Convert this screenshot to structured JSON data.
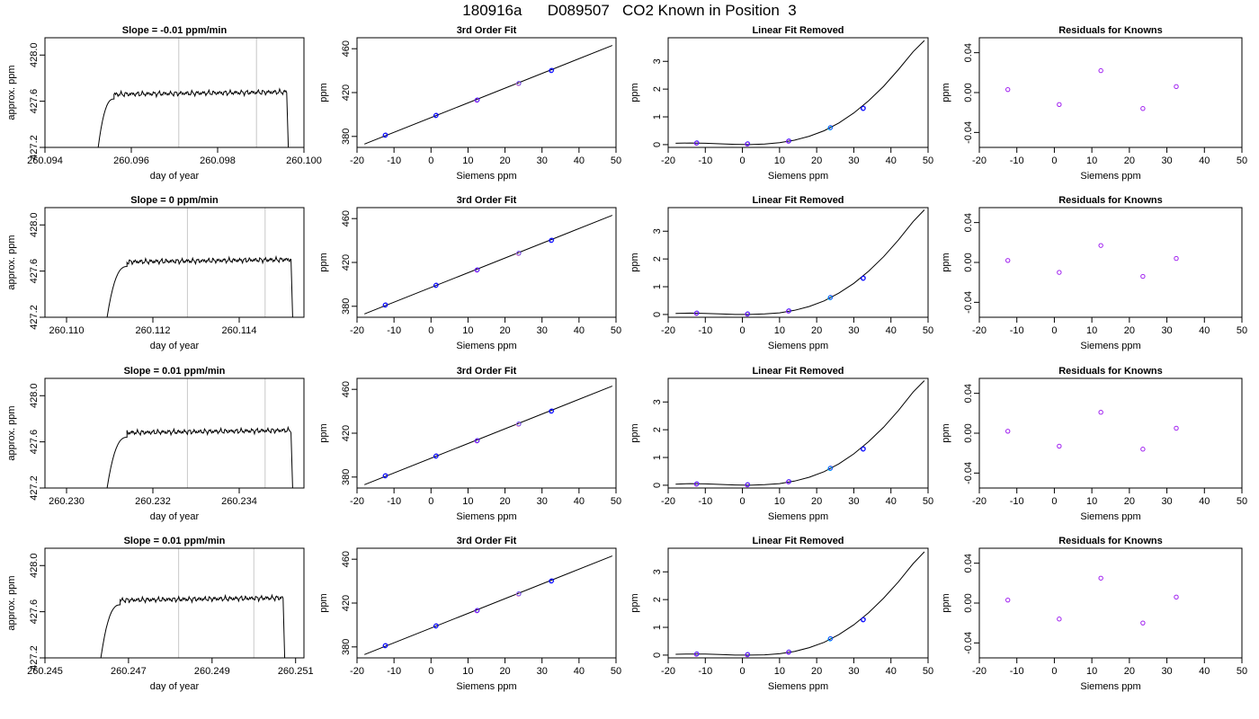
{
  "page_title": "180916a      D089507   CO2 Known in Position  3",
  "colors": {
    "trace": "#000000",
    "window": "#c8c8c8",
    "fit_line": "#000000",
    "point_blue": "#0000ff",
    "point_purple": "#a020f0",
    "point_cyan": "#00bfff",
    "point_pink": "#ff9ec4"
  },
  "chart_data": [
    {
      "type": "line",
      "row": 1,
      "col": 1,
      "title": "Slope =  -0.01  ppm/min",
      "xlabel": "day of year",
      "ylabel": "approx. ppm",
      "xlim": [
        260.094,
        260.1
      ],
      "ylim": [
        427.2,
        428.15
      ],
      "xticks": [
        "260.094",
        "260.096",
        "260.098",
        "260.100"
      ],
      "yticks": [
        "427.2",
        "427.6",
        "428.0"
      ],
      "window": [
        260.0971,
        260.0989
      ],
      "trace": {
        "start": 260.0952,
        "rise_end": 260.0956,
        "plateau": 427.66,
        "fall_start": 260.0996,
        "end": 260.09965
      }
    },
    {
      "type": "scatter",
      "row": 1,
      "col": 2,
      "title": "3rd Order Fit",
      "xlabel": "Siemens ppm",
      "ylabel": "ppm",
      "xlim": [
        -20,
        50
      ],
      "ylim": [
        370,
        470
      ],
      "xticks": [
        "-20",
        "-10",
        "0",
        "10",
        "20",
        "30",
        "40",
        "50"
      ],
      "yticks": [
        "380",
        "420",
        "460"
      ],
      "line": [
        [
          -18,
          373
        ],
        [
          49,
          463
        ]
      ],
      "points": [
        {
          "x": -12.4,
          "y": 381
        },
        {
          "x": 1.3,
          "y": 399
        },
        {
          "x": 12.4,
          "y": 413
        },
        {
          "x": 23.6,
          "y": 428
        },
        {
          "x": 32.5,
          "y": 440
        }
      ]
    },
    {
      "type": "line",
      "row": 1,
      "col": 3,
      "title": "Linear Fit Removed",
      "xlabel": "Siemens ppm",
      "ylabel": "ppm",
      "xlim": [
        -20,
        50
      ],
      "ylim": [
        -0.1,
        3.85
      ],
      "xticks": [
        "-20",
        "-10",
        "0",
        "10",
        "20",
        "30",
        "40",
        "50"
      ],
      "yticks": [
        "0",
        "1",
        "2",
        "3"
      ],
      "curve_x": [
        -18,
        -14,
        -10,
        -6,
        -2,
        2,
        6,
        10,
        14,
        18,
        22,
        26,
        30,
        34,
        38,
        42,
        46,
        49
      ],
      "curve_y": [
        0.05,
        0.06,
        0.05,
        0.03,
        0.01,
        0.0,
        0.02,
        0.07,
        0.16,
        0.3,
        0.5,
        0.78,
        1.14,
        1.58,
        2.1,
        2.7,
        3.35,
        3.75
      ],
      "points": [
        {
          "x": -12.4,
          "y": 0.05
        },
        {
          "x": 1.3,
          "y": 0.02
        },
        {
          "x": 12.4,
          "y": 0.12
        },
        {
          "x": 23.6,
          "y": 0.6
        },
        {
          "x": 32.5,
          "y": 1.3
        }
      ]
    },
    {
      "type": "scatter",
      "row": 1,
      "col": 4,
      "title": "Residuals for Knowns",
      "xlabel": "Siemens ppm",
      "ylabel": "ppm",
      "xlim": [
        -20,
        50
      ],
      "ylim": [
        -0.055,
        0.055
      ],
      "xticks": [
        "-20",
        "-10",
        "0",
        "10",
        "20",
        "30",
        "40",
        "50"
      ],
      "yticks": [
        "-0.04",
        "0.00",
        "0.04"
      ],
      "points": [
        {
          "x": -12.4,
          "y": 0.003
        },
        {
          "x": 1.3,
          "y": -0.012
        },
        {
          "x": 12.4,
          "y": 0.022
        },
        {
          "x": 23.6,
          "y": -0.016
        },
        {
          "x": 32.5,
          "y": 0.006
        }
      ]
    },
    {
      "type": "line",
      "row": 2,
      "col": 1,
      "title": "Slope =  0  ppm/min",
      "xlabel": "day of year",
      "ylabel": "approx. ppm",
      "xlim": [
        260.1095,
        260.1155
      ],
      "ylim": [
        427.2,
        428.15
      ],
      "xticks": [
        "260.110",
        "260.112",
        "260.114"
      ],
      "yticks": [
        "427.2",
        "427.6",
        "428.0"
      ],
      "window": [
        260.1128,
        260.1146
      ],
      "trace": {
        "start": 260.1109,
        "rise_end": 260.1114,
        "plateau": 427.68,
        "fall_start": 260.1152,
        "end": 260.11525
      }
    },
    {
      "type": "scatter",
      "row": 2,
      "col": 2,
      "title": "3rd Order Fit",
      "xlabel": "Siemens ppm",
      "ylabel": "ppm",
      "xlim": [
        -20,
        50
      ],
      "ylim": [
        370,
        470
      ],
      "xticks": [
        "-20",
        "-10",
        "0",
        "10",
        "20",
        "30",
        "40",
        "50"
      ],
      "yticks": [
        "380",
        "420",
        "460"
      ],
      "line": [
        [
          -18,
          373
        ],
        [
          49,
          463
        ]
      ],
      "points": [
        {
          "x": -12.4,
          "y": 381
        },
        {
          "x": 1.3,
          "y": 399
        },
        {
          "x": 12.4,
          "y": 413
        },
        {
          "x": 23.6,
          "y": 428
        },
        {
          "x": 32.5,
          "y": 440
        }
      ]
    },
    {
      "type": "line",
      "row": 2,
      "col": 3,
      "title": "Linear Fit Removed",
      "xlabel": "Siemens ppm",
      "ylabel": "ppm",
      "xlim": [
        -20,
        50
      ],
      "ylim": [
        -0.1,
        3.85
      ],
      "xticks": [
        "-20",
        "-10",
        "0",
        "10",
        "20",
        "30",
        "40",
        "50"
      ],
      "yticks": [
        "0",
        "1",
        "2",
        "3"
      ],
      "curve_x": [
        -18,
        -14,
        -10,
        -6,
        -2,
        2,
        6,
        10,
        14,
        18,
        22,
        26,
        30,
        34,
        38,
        42,
        46,
        49
      ],
      "curve_y": [
        0.04,
        0.05,
        0.04,
        0.02,
        0.0,
        0.0,
        0.02,
        0.06,
        0.15,
        0.29,
        0.49,
        0.77,
        1.12,
        1.56,
        2.08,
        2.68,
        3.35,
        3.77
      ],
      "points": [
        {
          "x": -12.4,
          "y": 0.04
        },
        {
          "x": 1.3,
          "y": 0.01
        },
        {
          "x": 12.4,
          "y": 0.12
        },
        {
          "x": 23.6,
          "y": 0.6
        },
        {
          "x": 32.5,
          "y": 1.3
        }
      ]
    },
    {
      "type": "scatter",
      "row": 2,
      "col": 4,
      "title": "Residuals for Knowns",
      "xlabel": "Siemens ppm",
      "ylabel": "ppm",
      "xlim": [
        -20,
        50
      ],
      "ylim": [
        -0.055,
        0.055
      ],
      "xticks": [
        "-20",
        "-10",
        "0",
        "10",
        "20",
        "30",
        "40",
        "50"
      ],
      "yticks": [
        "-0.04",
        "0.00",
        "0.04"
      ],
      "points": [
        {
          "x": -12.4,
          "y": 0.002
        },
        {
          "x": 1.3,
          "y": -0.01
        },
        {
          "x": 12.4,
          "y": 0.017
        },
        {
          "x": 23.6,
          "y": -0.014
        },
        {
          "x": 32.5,
          "y": 0.004
        }
      ]
    },
    {
      "type": "line",
      "row": 3,
      "col": 1,
      "title": "Slope =  0.01  ppm/min",
      "xlabel": "day of year",
      "ylabel": "approx. ppm",
      "xlim": [
        260.2295,
        260.2355
      ],
      "ylim": [
        427.2,
        428.15
      ],
      "xticks": [
        "260.230",
        "260.232",
        "260.234"
      ],
      "yticks": [
        "427.2",
        "427.6",
        "428.0"
      ],
      "window": [
        260.2328,
        260.2346
      ],
      "trace": {
        "start": 260.2309,
        "rise_end": 260.2314,
        "plateau": 427.68,
        "fall_start": 260.2352,
        "end": 260.23525
      }
    },
    {
      "type": "scatter",
      "row": 3,
      "col": 2,
      "title": "3rd Order Fit",
      "xlabel": "Siemens ppm",
      "ylabel": "ppm",
      "xlim": [
        -20,
        50
      ],
      "ylim": [
        370,
        470
      ],
      "xticks": [
        "-20",
        "-10",
        "0",
        "10",
        "20",
        "30",
        "40",
        "50"
      ],
      "yticks": [
        "380",
        "420",
        "460"
      ],
      "line": [
        [
          -18,
          373
        ],
        [
          49,
          463
        ]
      ],
      "points": [
        {
          "x": -12.4,
          "y": 381
        },
        {
          "x": 1.3,
          "y": 399
        },
        {
          "x": 12.4,
          "y": 413
        },
        {
          "x": 23.6,
          "y": 428
        },
        {
          "x": 32.5,
          "y": 440
        }
      ]
    },
    {
      "type": "line",
      "row": 3,
      "col": 3,
      "title": "Linear Fit Removed",
      "xlabel": "Siemens ppm",
      "ylabel": "ppm",
      "xlim": [
        -20,
        50
      ],
      "ylim": [
        -0.1,
        3.85
      ],
      "xticks": [
        "-20",
        "-10",
        "0",
        "10",
        "20",
        "30",
        "40",
        "50"
      ],
      "yticks": [
        "0",
        "1",
        "2",
        "3"
      ],
      "curve_x": [
        -18,
        -14,
        -10,
        -6,
        -2,
        2,
        6,
        10,
        14,
        18,
        22,
        26,
        30,
        34,
        38,
        42,
        46,
        49
      ],
      "curve_y": [
        0.04,
        0.06,
        0.05,
        0.03,
        0.01,
        0.0,
        0.02,
        0.06,
        0.15,
        0.29,
        0.49,
        0.77,
        1.13,
        1.57,
        2.09,
        2.69,
        3.36,
        3.77
      ],
      "points": [
        {
          "x": -12.4,
          "y": 0.04
        },
        {
          "x": 1.3,
          "y": 0.01
        },
        {
          "x": 12.4,
          "y": 0.12
        },
        {
          "x": 23.6,
          "y": 0.6
        },
        {
          "x": 32.5,
          "y": 1.3
        }
      ]
    },
    {
      "type": "scatter",
      "row": 3,
      "col": 4,
      "title": "Residuals for Knowns",
      "xlabel": "Siemens ppm",
      "ylabel": "ppm",
      "xlim": [
        -20,
        50
      ],
      "ylim": [
        -0.055,
        0.055
      ],
      "xticks": [
        "-20",
        "-10",
        "0",
        "10",
        "20",
        "30",
        "40",
        "50"
      ],
      "yticks": [
        "-0.04",
        "0.00",
        "0.04"
      ],
      "points": [
        {
          "x": -12.4,
          "y": 0.002
        },
        {
          "x": 1.3,
          "y": -0.013
        },
        {
          "x": 12.4,
          "y": 0.021
        },
        {
          "x": 23.6,
          "y": -0.016
        },
        {
          "x": 32.5,
          "y": 0.005
        }
      ]
    },
    {
      "type": "line",
      "row": 4,
      "col": 1,
      "title": "Slope =  0.01  ppm/min",
      "xlabel": "day of year",
      "ylabel": "approx. ppm",
      "xlim": [
        260.245,
        260.2512
      ],
      "ylim": [
        427.2,
        428.15
      ],
      "xticks": [
        "260.245",
        "260.247",
        "260.249",
        "260.251"
      ],
      "yticks": [
        "427.2",
        "427.6",
        "428.0"
      ],
      "window": [
        260.2482,
        260.25
      ],
      "trace": {
        "start": 260.2463,
        "rise_end": 260.2468,
        "plateau": 427.7,
        "fall_start": 260.2507,
        "end": 260.25075
      }
    },
    {
      "type": "scatter",
      "row": 4,
      "col": 2,
      "title": "3rd Order Fit",
      "xlabel": "Siemens ppm",
      "ylabel": "ppm",
      "xlim": [
        -20,
        50
      ],
      "ylim": [
        370,
        470
      ],
      "xticks": [
        "-20",
        "-10",
        "0",
        "10",
        "20",
        "30",
        "40",
        "50"
      ],
      "yticks": [
        "380",
        "420",
        "460"
      ],
      "line": [
        [
          -18,
          373
        ],
        [
          49,
          463
        ]
      ],
      "points": [
        {
          "x": -12.4,
          "y": 381
        },
        {
          "x": 1.3,
          "y": 399
        },
        {
          "x": 12.4,
          "y": 413
        },
        {
          "x": 23.6,
          "y": 428
        },
        {
          "x": 32.5,
          "y": 440
        }
      ]
    },
    {
      "type": "line",
      "row": 4,
      "col": 3,
      "title": "Linear Fit Removed",
      "xlabel": "Siemens ppm",
      "ylabel": "ppm",
      "xlim": [
        -20,
        50
      ],
      "ylim": [
        -0.1,
        3.85
      ],
      "xticks": [
        "-20",
        "-10",
        "0",
        "10",
        "20",
        "30",
        "40",
        "50"
      ],
      "yticks": [
        "0",
        "1",
        "2",
        "3"
      ],
      "curve_x": [
        -18,
        -14,
        -10,
        -6,
        -2,
        2,
        6,
        10,
        14,
        18,
        22,
        26,
        30,
        34,
        38,
        42,
        46,
        49
      ],
      "curve_y": [
        0.03,
        0.04,
        0.04,
        0.02,
        0.0,
        0.0,
        0.01,
        0.05,
        0.13,
        0.27,
        0.46,
        0.74,
        1.09,
        1.53,
        2.05,
        2.64,
        3.3,
        3.72
      ],
      "points": [
        {
          "x": -12.4,
          "y": 0.03
        },
        {
          "x": 1.3,
          "y": 0.01
        },
        {
          "x": 12.4,
          "y": 0.1
        },
        {
          "x": 23.6,
          "y": 0.58
        },
        {
          "x": 32.5,
          "y": 1.27
        }
      ]
    },
    {
      "type": "scatter",
      "row": 4,
      "col": 4,
      "title": "Residuals for Knowns",
      "xlabel": "Siemens ppm",
      "ylabel": "ppm",
      "xlim": [
        -20,
        50
      ],
      "ylim": [
        -0.055,
        0.055
      ],
      "xticks": [
        "-20",
        "-10",
        "0",
        "10",
        "20",
        "30",
        "40",
        "50"
      ],
      "yticks": [
        "-0.04",
        "0.00",
        "0.04"
      ],
      "points": [
        {
          "x": -12.4,
          "y": 0.003
        },
        {
          "x": 1.3,
          "y": -0.016
        },
        {
          "x": 12.4,
          "y": 0.025
        },
        {
          "x": 23.6,
          "y": -0.02
        },
        {
          "x": 32.5,
          "y": 0.006
        }
      ]
    }
  ]
}
